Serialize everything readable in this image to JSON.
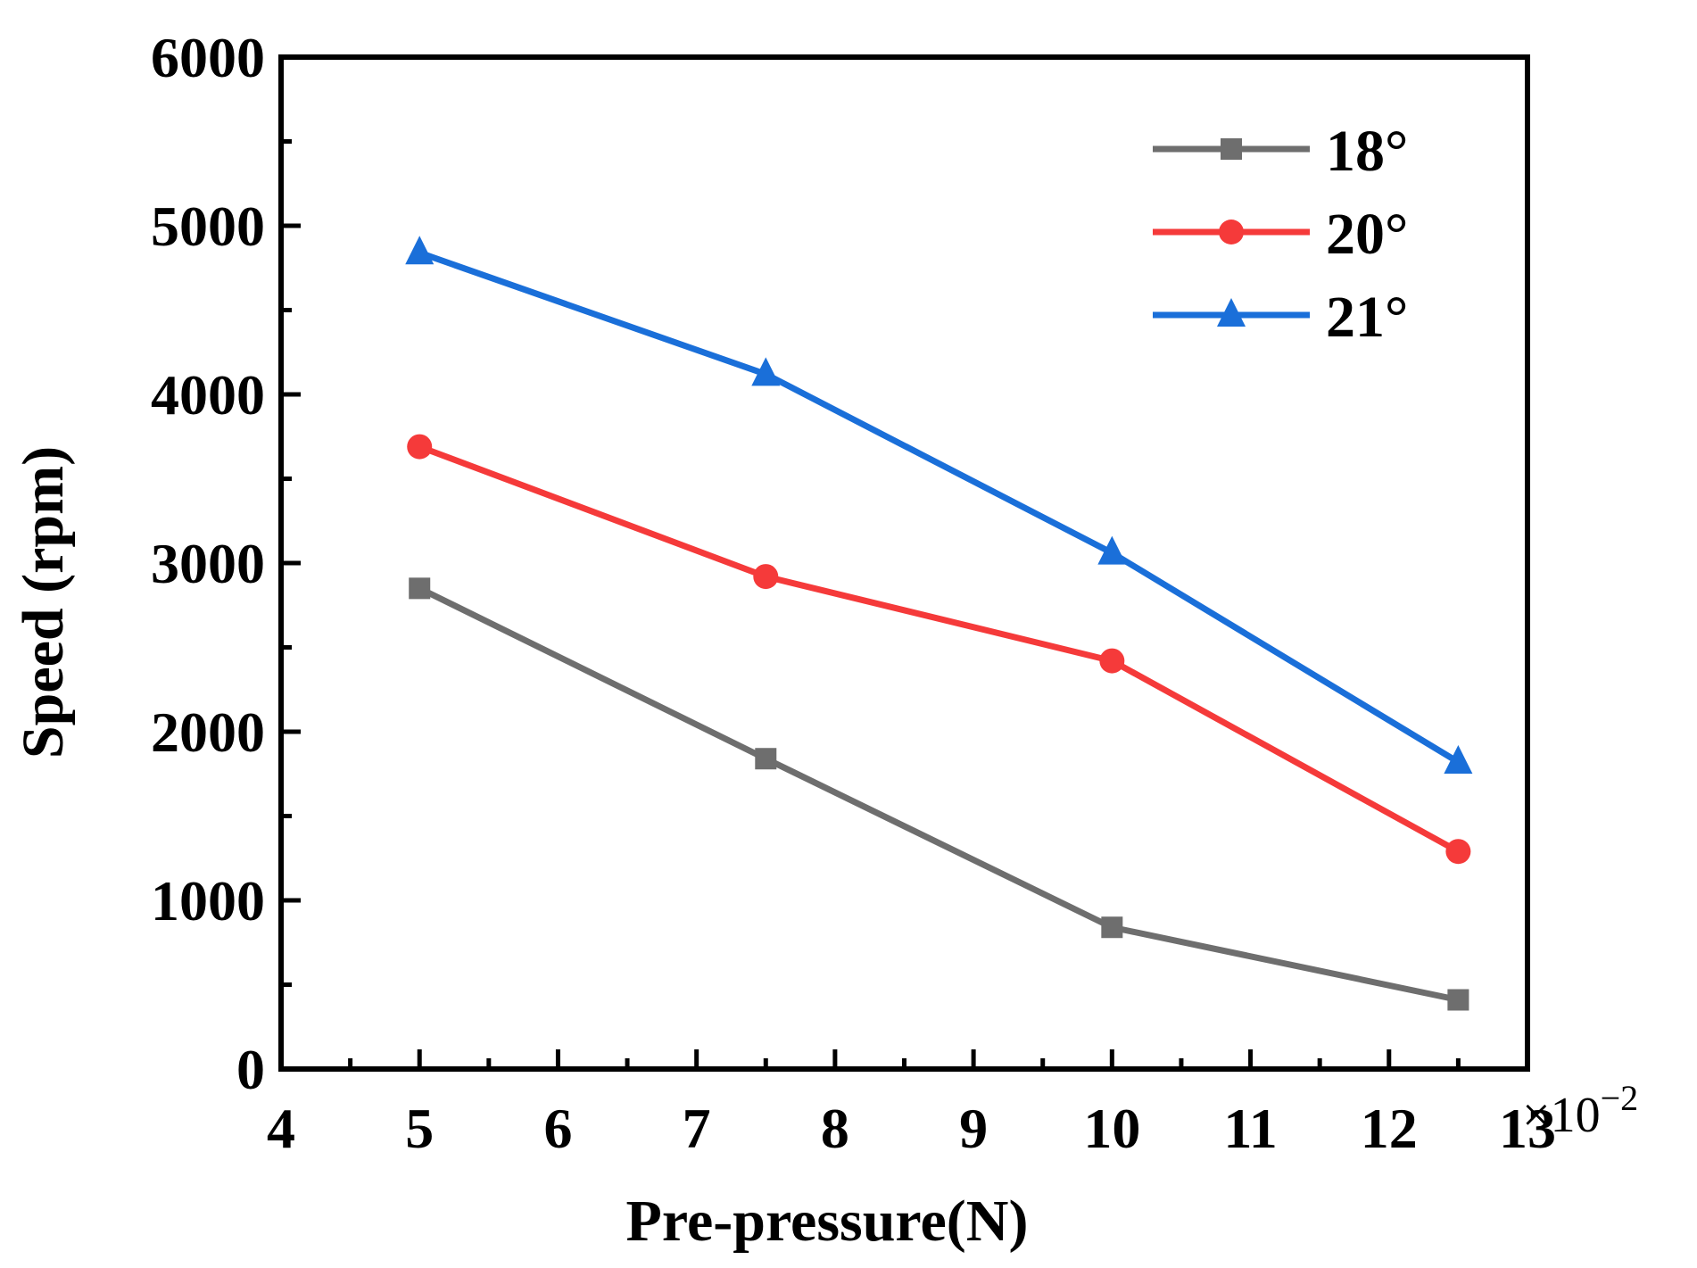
{
  "chart_data": {
    "type": "line",
    "title": "",
    "xlabel": "Pre-pressure(N)",
    "ylabel": "Speed (rpm)",
    "x_multiplier": {
      "base": "×10",
      "exponent": "−2"
    },
    "xlim": [
      4,
      13
    ],
    "ylim": [
      0,
      6000
    ],
    "x_ticks": [
      4,
      5,
      6,
      7,
      8,
      9,
      10,
      11,
      12,
      13
    ],
    "y_ticks": [
      0,
      1000,
      2000,
      3000,
      4000,
      5000,
      6000
    ],
    "grid": false,
    "legend_position": "top-right",
    "x": [
      5,
      7.5,
      10,
      12.5
    ],
    "series": [
      {
        "name": "18°",
        "marker": "square",
        "color": "#6e6e6e",
        "values": [
          2850,
          1840,
          840,
          410
        ]
      },
      {
        "name": "20°",
        "marker": "circle",
        "color": "#f53a3a",
        "values": [
          3690,
          2920,
          2420,
          1290
        ]
      },
      {
        "name": "21°",
        "marker": "triangle",
        "color": "#1a6fd9",
        "values": [
          4840,
          4120,
          3060,
          1820
        ]
      }
    ]
  }
}
